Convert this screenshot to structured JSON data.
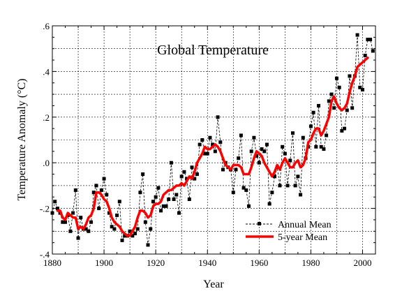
{
  "chart_data": {
    "type": "line",
    "title": "Global Temperature",
    "xlabel": "Year",
    "ylabel": "Temperature Anomaly (°C)",
    "xlim": [
      1880,
      2005
    ],
    "ylim": [
      -0.4,
      0.6
    ],
    "x_ticks": [
      1880,
      1900,
      1920,
      1940,
      1960,
      1980,
      2000
    ],
    "x_tick_labels": [
      "1880",
      "1900",
      "1920",
      "1940",
      "1960",
      "1980",
      "2000"
    ],
    "y_ticks": [
      -0.4,
      -0.2,
      0.0,
      0.2,
      0.4,
      0.6
    ],
    "y_tick_labels": [
      "-.4",
      "-.2",
      ".0",
      ".2",
      ".4",
      ".6"
    ],
    "grid": "dashed",
    "legend_position": "bottom-right",
    "series": [
      {
        "name": "Annual Mean",
        "color": "#000000",
        "style": "dashed-with-square-markers",
        "x": [
          1880,
          1881,
          1882,
          1883,
          1884,
          1885,
          1886,
          1887,
          1888,
          1889,
          1890,
          1891,
          1892,
          1893,
          1894,
          1895,
          1896,
          1897,
          1898,
          1899,
          1900,
          1901,
          1902,
          1903,
          1904,
          1905,
          1906,
          1907,
          1908,
          1909,
          1910,
          1911,
          1912,
          1913,
          1914,
          1915,
          1916,
          1917,
          1918,
          1919,
          1920,
          1921,
          1922,
          1923,
          1924,
          1925,
          1926,
          1927,
          1928,
          1929,
          1930,
          1931,
          1932,
          1933,
          1934,
          1935,
          1936,
          1937,
          1938,
          1939,
          1940,
          1941,
          1942,
          1943,
          1944,
          1945,
          1946,
          1947,
          1948,
          1949,
          1950,
          1951,
          1952,
          1953,
          1954,
          1955,
          1956,
          1957,
          1958,
          1959,
          1960,
          1961,
          1962,
          1963,
          1964,
          1965,
          1966,
          1967,
          1968,
          1969,
          1970,
          1971,
          1972,
          1973,
          1974,
          1975,
          1976,
          1977,
          1978,
          1979,
          1980,
          1981,
          1982,
          1983,
          1984,
          1985,
          1986,
          1987,
          1988,
          1989,
          1990,
          1991,
          1992,
          1993,
          1994,
          1995,
          1996,
          1997,
          1998,
          1999,
          2000,
          2001,
          2002,
          2003,
          2004
        ],
        "y": [
          -0.22,
          -0.17,
          -0.2,
          -0.22,
          -0.26,
          -0.26,
          -0.23,
          -0.3,
          -0.22,
          -0.12,
          -0.33,
          -0.24,
          -0.29,
          -0.29,
          -0.3,
          -0.26,
          -0.13,
          -0.1,
          -0.2,
          -0.12,
          -0.07,
          -0.14,
          -0.22,
          -0.28,
          -0.29,
          -0.23,
          -0.17,
          -0.34,
          -0.32,
          -0.32,
          -0.3,
          -0.32,
          -0.31,
          -0.29,
          -0.13,
          -0.05,
          -0.26,
          -0.36,
          -0.29,
          -0.17,
          -0.15,
          -0.11,
          -0.21,
          -0.19,
          -0.19,
          -0.16,
          0.0,
          -0.16,
          -0.14,
          -0.22,
          -0.06,
          -0.04,
          -0.07,
          -0.16,
          -0.02,
          -0.07,
          -0.05,
          0.08,
          0.1,
          0.04,
          0.04,
          0.11,
          0.08,
          0.05,
          0.2,
          0.09,
          -0.03,
          0.0,
          -0.02,
          -0.03,
          -0.13,
          -0.03,
          0.02,
          0.12,
          -0.11,
          -0.12,
          -0.19,
          0.05,
          0.11,
          0.03,
          0.0,
          0.06,
          0.05,
          0.08,
          -0.18,
          -0.13,
          -0.06,
          -0.02,
          -0.1,
          0.07,
          0.04,
          -0.1,
          0.01,
          0.13,
          -0.1,
          -0.06,
          -0.14,
          0.11,
          0.02,
          0.07,
          0.16,
          0.22,
          0.07,
          0.25,
          0.07,
          0.06,
          0.12,
          0.27,
          0.3,
          0.24,
          0.37,
          0.33,
          0.14,
          0.15,
          0.23,
          0.38,
          0.24,
          0.38,
          0.56,
          0.33,
          0.32,
          0.47,
          0.54,
          0.54,
          0.49
        ]
      },
      {
        "name": "5-year Mean",
        "color": "#ff0000",
        "style": "solid-thick",
        "x": [
          1882,
          1883,
          1884,
          1885,
          1886,
          1887,
          1888,
          1889,
          1890,
          1891,
          1892,
          1893,
          1894,
          1895,
          1896,
          1897,
          1898,
          1899,
          1900,
          1901,
          1902,
          1903,
          1904,
          1905,
          1906,
          1907,
          1908,
          1909,
          1910,
          1911,
          1912,
          1913,
          1914,
          1915,
          1916,
          1917,
          1918,
          1919,
          1920,
          1921,
          1922,
          1923,
          1924,
          1925,
          1926,
          1927,
          1928,
          1929,
          1930,
          1931,
          1932,
          1933,
          1934,
          1935,
          1936,
          1937,
          1938,
          1939,
          1940,
          1941,
          1942,
          1943,
          1944,
          1945,
          1946,
          1947,
          1948,
          1949,
          1950,
          1951,
          1952,
          1953,
          1954,
          1955,
          1956,
          1957,
          1958,
          1959,
          1960,
          1961,
          1962,
          1963,
          1964,
          1965,
          1966,
          1967,
          1968,
          1969,
          1970,
          1971,
          1972,
          1973,
          1974,
          1975,
          1976,
          1977,
          1978,
          1979,
          1980,
          1981,
          1982,
          1983,
          1984,
          1985,
          1986,
          1987,
          1988,
          1989,
          1990,
          1991,
          1992,
          1993,
          1994,
          1995,
          1996,
          1997,
          1998,
          1999,
          2000,
          2001,
          2002
        ],
        "y": [
          -0.21,
          -0.21,
          -0.24,
          -0.25,
          -0.22,
          -0.23,
          -0.24,
          -0.24,
          -0.29,
          -0.28,
          -0.29,
          -0.27,
          -0.24,
          -0.23,
          -0.2,
          -0.13,
          -0.13,
          -0.14,
          -0.16,
          -0.17,
          -0.2,
          -0.24,
          -0.26,
          -0.27,
          -0.28,
          -0.3,
          -0.31,
          -0.32,
          -0.32,
          -0.3,
          -0.28,
          -0.24,
          -0.21,
          -0.21,
          -0.22,
          -0.24,
          -0.23,
          -0.19,
          -0.18,
          -0.18,
          -0.17,
          -0.14,
          -0.13,
          -0.12,
          -0.12,
          -0.11,
          -0.1,
          -0.1,
          -0.09,
          -0.1,
          -0.08,
          -0.06,
          -0.07,
          -0.04,
          0.0,
          0.02,
          0.04,
          0.07,
          0.06,
          0.06,
          0.07,
          0.08,
          0.07,
          0.05,
          0.02,
          -0.01,
          -0.02,
          -0.03,
          -0.01,
          -0.01,
          -0.01,
          -0.02,
          -0.05,
          -0.05,
          -0.05,
          -0.02,
          0.02,
          0.05,
          0.04,
          0.03,
          0.0,
          -0.02,
          -0.04,
          -0.06,
          -0.04,
          -0.01,
          -0.03,
          0.0,
          0.02,
          0.0,
          -0.02,
          -0.02,
          0.0,
          0.01,
          -0.02,
          -0.01,
          0.02,
          0.09,
          0.1,
          0.13,
          0.15,
          0.15,
          0.12,
          0.14,
          0.17,
          0.2,
          0.27,
          0.29,
          0.26,
          0.24,
          0.23,
          0.24,
          0.26,
          0.31,
          0.35,
          0.38,
          0.42,
          0.43,
          0.44,
          0.45,
          0.46
        ]
      }
    ]
  }
}
